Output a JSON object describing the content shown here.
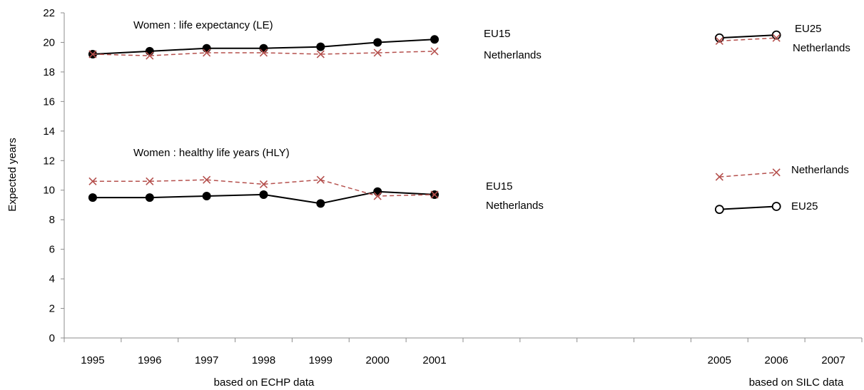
{
  "chart_data": {
    "type": "line",
    "ylabel": "Expected years",
    "ylim": [
      0,
      22
    ],
    "y_ticks": [
      "0",
      "2",
      "4",
      "6",
      "8",
      "10",
      "12",
      "14",
      "16",
      "18",
      "20",
      "22"
    ],
    "categories": [
      "1995",
      "1996",
      "1997",
      "1998",
      "1999",
      "2000",
      "2001",
      "",
      "",
      "",
      "",
      "2005",
      "2006",
      "2007"
    ],
    "group_labels": {
      "echp": "based on ECHP data",
      "silc": "based on SILC data"
    },
    "panel_titles": {
      "le": "Women :  life expectancy (LE)",
      "hly": "Women :  healthy life years (HLY)"
    },
    "colors": {
      "eu": "#000000",
      "nl": "#b5504d"
    },
    "series": [
      {
        "key": "le_eu15",
        "name": "EU15",
        "marker": "dot",
        "dashed": false,
        "color": "#000000",
        "x": [
          "1995",
          "1996",
          "1997",
          "1998",
          "1999",
          "2000",
          "2001"
        ],
        "values": [
          19.2,
          19.4,
          19.6,
          19.6,
          19.7,
          20.0,
          20.2
        ]
      },
      {
        "key": "le_nl_echp",
        "name": "Netherlands",
        "marker": "x",
        "dashed": true,
        "color": "#b5504d",
        "x": [
          "1995",
          "1996",
          "1997",
          "1998",
          "1999",
          "2000",
          "2001"
        ],
        "values": [
          19.2,
          19.1,
          19.3,
          19.3,
          19.2,
          19.3,
          19.4
        ]
      },
      {
        "key": "hly_eu15",
        "name": "EU15",
        "marker": "dot",
        "dashed": false,
        "color": "#000000",
        "x": [
          "1995",
          "1996",
          "1997",
          "1998",
          "1999",
          "2000",
          "2001"
        ],
        "values": [
          9.5,
          9.5,
          9.6,
          9.7,
          9.1,
          9.9,
          9.7
        ]
      },
      {
        "key": "hly_nl_echp",
        "name": "Netherlands",
        "marker": "x",
        "dashed": true,
        "color": "#b5504d",
        "x": [
          "1995",
          "1996",
          "1997",
          "1998",
          "1999",
          "2000",
          "2001"
        ],
        "values": [
          10.6,
          10.6,
          10.7,
          10.4,
          10.7,
          9.6,
          9.7
        ]
      },
      {
        "key": "le_eu25",
        "name": "EU25",
        "marker": "circle",
        "dashed": false,
        "color": "#000000",
        "x": [
          "2005",
          "2006"
        ],
        "values": [
          20.3,
          20.5
        ]
      },
      {
        "key": "le_nl_silc",
        "name": "Netherlands",
        "marker": "x",
        "dashed": true,
        "color": "#b5504d",
        "x": [
          "2005",
          "2006"
        ],
        "values": [
          20.1,
          20.3
        ]
      },
      {
        "key": "hly_nl_silc",
        "name": "Netherlands",
        "marker": "x",
        "dashed": true,
        "color": "#b5504d",
        "x": [
          "2005",
          "2006"
        ],
        "values": [
          10.9,
          11.2
        ]
      },
      {
        "key": "hly_eu25",
        "name": "EU25",
        "marker": "circle",
        "dashed": false,
        "color": "#000000",
        "x": [
          "2005",
          "2006"
        ],
        "values": [
          8.7,
          8.9
        ]
      }
    ],
    "annotations": [
      {
        "key": "a_eu15_le",
        "text": "EU15"
      },
      {
        "key": "a_nl_le",
        "text": "Netherlands"
      },
      {
        "key": "a_eu15_hly",
        "text": "EU15"
      },
      {
        "key": "a_nl_hly",
        "text": "Netherlands"
      },
      {
        "key": "a_eu25_le",
        "text": "EU25"
      },
      {
        "key": "a_nl_silc_le",
        "text": "Netherlands"
      },
      {
        "key": "a_nl_silc_hly",
        "text": "Netherlands"
      },
      {
        "key": "a_eu25_hly",
        "text": "EU25"
      }
    ]
  }
}
